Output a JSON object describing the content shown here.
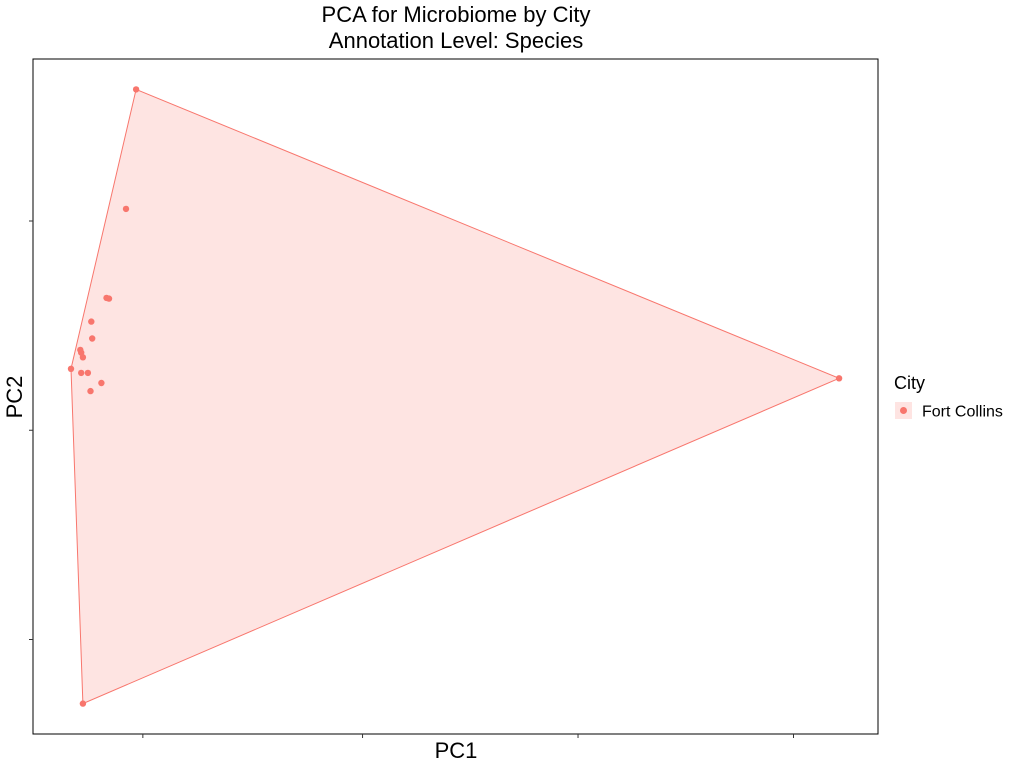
{
  "chart_data": {
    "type": "scatter",
    "title": "PCA for Microbiome by City",
    "subtitle": "Annotation Level: Species",
    "xlabel": "PC1",
    "ylabel": "PC2",
    "xlim": [
      0,
      1
    ],
    "ylim": [
      0,
      1
    ],
    "xticks": [
      0.13,
      0.39,
      0.645,
      0.9
    ],
    "yticks": [
      0.14,
      0.45,
      0.76
    ],
    "grid": false,
    "hull": true,
    "legend": {
      "title": "City",
      "position": "right",
      "entries": [
        "Fort Collins"
      ]
    },
    "series": [
      {
        "name": "Fort Collins",
        "color": "#F8766D",
        "fill": "#F8766D",
        "fill_opacity": 0.2,
        "points": [
          {
            "x": 0.122,
            "y": 0.955
          },
          {
            "x": 0.11,
            "y": 0.778
          },
          {
            "x": 0.087,
            "y": 0.646
          },
          {
            "x": 0.09,
            "y": 0.645
          },
          {
            "x": 0.069,
            "y": 0.611
          },
          {
            "x": 0.07,
            "y": 0.586
          },
          {
            "x": 0.056,
            "y": 0.569
          },
          {
            "x": 0.057,
            "y": 0.565
          },
          {
            "x": 0.059,
            "y": 0.558
          },
          {
            "x": 0.045,
            "y": 0.541
          },
          {
            "x": 0.057,
            "y": 0.535
          },
          {
            "x": 0.065,
            "y": 0.535
          },
          {
            "x": 0.081,
            "y": 0.52
          },
          {
            "x": 0.068,
            "y": 0.508
          },
          {
            "x": 0.954,
            "y": 0.527
          },
          {
            "x": 0.059,
            "y": 0.045
          }
        ]
      }
    ]
  }
}
